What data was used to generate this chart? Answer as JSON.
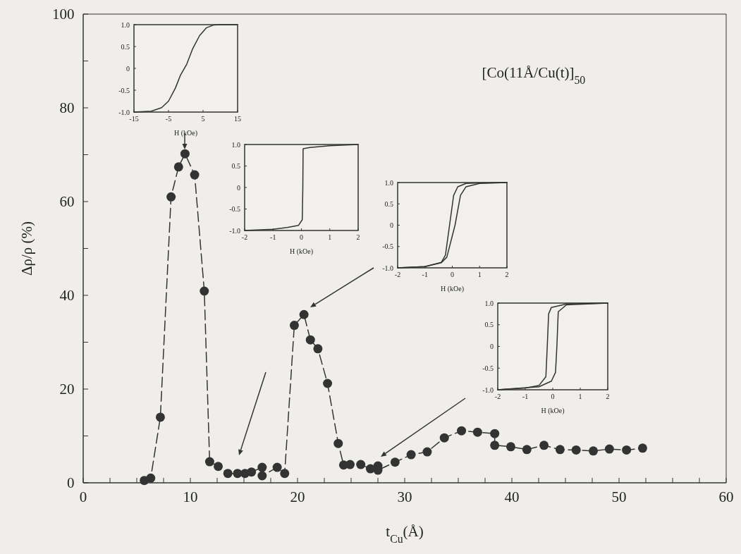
{
  "chart_data": [
    {
      "type": "line",
      "xlabel": "t$_{Cu}$(Å)",
      "ylabel": "Δρ/ρ (%)",
      "annotations": [
        "[Co(11Å/Cu(t)]$_{50}$"
      ],
      "marker": "circle",
      "line_style": "dashed",
      "xlim": [
        0,
        60
      ],
      "ylim": [
        0,
        100
      ],
      "xticks": [
        0,
        {
          "value": 2.5,
          "label": null
        },
        {
          "value": 5,
          "label": null
        },
        {
          "value": 7.5,
          "label": null
        },
        10,
        {
          "value": 12.5,
          "label": null
        },
        {
          "value": 15,
          "label": null
        },
        {
          "value": 17.5,
          "label": null
        },
        20,
        {
          "value": 22.5,
          "label": null
        },
        {
          "value": 25,
          "label": null
        },
        {
          "value": 27.5,
          "label": null
        },
        30,
        {
          "value": 32.5,
          "label": null
        },
        {
          "value": 35,
          "label": null
        },
        {
          "value": 37.5,
          "label": null
        },
        40,
        {
          "value": 42.5,
          "label": null
        },
        {
          "value": 45,
          "label": null
        },
        {
          "value": 47.5,
          "label": null
        },
        50,
        {
          "value": 52.5,
          "label": null
        },
        {
          "value": 55,
          "label": null
        },
        {
          "value": 57.5,
          "label": null
        },
        60
      ],
      "yticks": [
        0,
        {
          "value": 10,
          "label": null
        },
        20,
        {
          "value": 30,
          "label": null
        },
        40,
        {
          "value": 50,
          "label": null
        },
        60,
        {
          "value": 70,
          "label": null
        },
        80,
        {
          "value": 90,
          "label": null
        },
        100
      ],
      "series": [
        {
          "color": "#333333",
          "x": [
            5.7,
            6.3,
            7.2,
            8.2,
            8.9,
            9.5,
            10.4,
            11.3,
            11.8,
            12.6,
            13.5,
            14.4,
            15.1,
            15.7,
            16.7,
            16.7,
            18.1,
            18.8,
            19.7,
            20.6,
            21.2,
            21.9,
            22.8,
            23.8,
            24.3,
            24.9,
            25.9,
            26.8,
            27.5,
            27.5,
            29.1,
            30.6,
            32.1,
            33.7,
            35.3,
            36.8,
            38.4,
            38.4,
            39.9,
            41.4,
            43.0,
            44.5,
            46.0,
            47.6,
            49.1,
            50.7,
            52.2
          ],
          "values": [
            0.5,
            1.0,
            14.0,
            61.0,
            67.4,
            70.2,
            65.7,
            40.9,
            4.5,
            3.5,
            2.0,
            2.0,
            2.0,
            2.3,
            3.3,
            1.5,
            3.3,
            2.0,
            33.6,
            35.9,
            30.5,
            28.6,
            21.2,
            8.4,
            3.8,
            3.9,
            3.9,
            3.0,
            3.6,
            2.7,
            4.4,
            6.0,
            6.6,
            9.6,
            11.1,
            10.8,
            10.5,
            8.0,
            7.7,
            7.1,
            8.0,
            7.1,
            7.0,
            6.8,
            7.2,
            7.0,
            7.4
          ]
        }
      ]
    },
    {
      "type": "line",
      "xlabel": "H (kOe)",
      "xlim": [
        -15,
        15
      ],
      "ylim": [
        -1,
        1
      ],
      "xticks": [
        -15,
        -5,
        5,
        15
      ],
      "yticks": [
        {
          "value": -1,
          "label": "-1.0"
        },
        -0.5,
        0,
        0.5,
        {
          "value": 1,
          "label": "1.0"
        }
      ],
      "series": [
        {
          "color": "#333333",
          "x": [
            -15,
            -10,
            -7,
            -5,
            -3,
            -1.5,
            0.3,
            2,
            4,
            6,
            8,
            10,
            15
          ],
          "values": [
            -1,
            -0.98,
            -0.9,
            -0.75,
            -0.45,
            -0.15,
            0.1,
            0.45,
            0.75,
            0.93,
            0.99,
            1,
            1
          ]
        }
      ]
    },
    {
      "type": "line",
      "xlabel": "H (kOe)",
      "xlim": [
        -2,
        2
      ],
      "ylim": [
        -1,
        1
      ],
      "xticks": [
        -2,
        -1,
        0,
        1,
        2
      ],
      "yticks": [
        {
          "value": -1,
          "label": "-1.0"
        },
        -0.5,
        0,
        0.5,
        {
          "value": 1,
          "label": "1.0"
        }
      ],
      "series": [
        {
          "color": "#333333",
          "x": [
            -2,
            -1,
            -0.5,
            -0.1,
            0.03,
            0.05,
            0.06,
            0.3,
            1,
            2
          ],
          "values": [
            -1,
            -0.97,
            -0.93,
            -0.88,
            -0.75,
            0,
            0.9,
            0.93,
            0.97,
            1
          ]
        }
      ]
    },
    {
      "type": "line",
      "xlabel": "H (kOe)",
      "xlim": [
        -2,
        2
      ],
      "ylim": [
        -1,
        1
      ],
      "xticks": [
        -2,
        -1,
        0,
        1,
        2
      ],
      "yticks": [
        {
          "value": -1,
          "label": "-1.0"
        },
        -0.5,
        0,
        0.5,
        {
          "value": 1,
          "label": "1.0"
        }
      ],
      "series": [
        {
          "color": "#333333",
          "x": [
            2,
            1,
            0.5,
            0.2,
            0.05,
            -0.1,
            -0.25,
            -0.4,
            -1,
            -2
          ],
          "values": [
            1,
            0.99,
            0.98,
            0.9,
            0.7,
            0,
            -0.7,
            -0.87,
            -0.97,
            -1
          ]
        },
        {
          "color": "#333333",
          "x": [
            -2,
            -1,
            -0.4,
            -0.2,
            0.1,
            0.3,
            0.5,
            1,
            2
          ],
          "values": [
            -1,
            -0.97,
            -0.88,
            -0.75,
            0,
            0.7,
            0.9,
            0.98,
            1
          ]
        }
      ]
    },
    {
      "type": "line",
      "xlabel": "H (kOe)",
      "xlim": [
        -2,
        2
      ],
      "ylim": [
        -1,
        1
      ],
      "xticks": [
        -2,
        -1,
        0,
        1,
        2
      ],
      "yticks": [
        {
          "value": -1,
          "label": "-1.0"
        },
        -0.5,
        0,
        0.5,
        {
          "value": 1,
          "label": "1.0"
        }
      ],
      "series": [
        {
          "color": "#333333",
          "x": [
            2,
            0.5,
            -0.05,
            -0.15,
            -0.2,
            -0.25,
            -0.5,
            -1,
            -2
          ],
          "values": [
            1,
            0.98,
            0.9,
            0.75,
            0,
            -0.7,
            -0.9,
            -0.96,
            -1
          ]
        },
        {
          "color": "#333333",
          "x": [
            -2,
            -0.5,
            -0.05,
            0.1,
            0.15,
            0.2,
            0.5,
            2
          ],
          "values": [
            -1,
            -0.93,
            -0.8,
            -0.6,
            0,
            0.8,
            0.96,
            1
          ]
        }
      ]
    }
  ]
}
